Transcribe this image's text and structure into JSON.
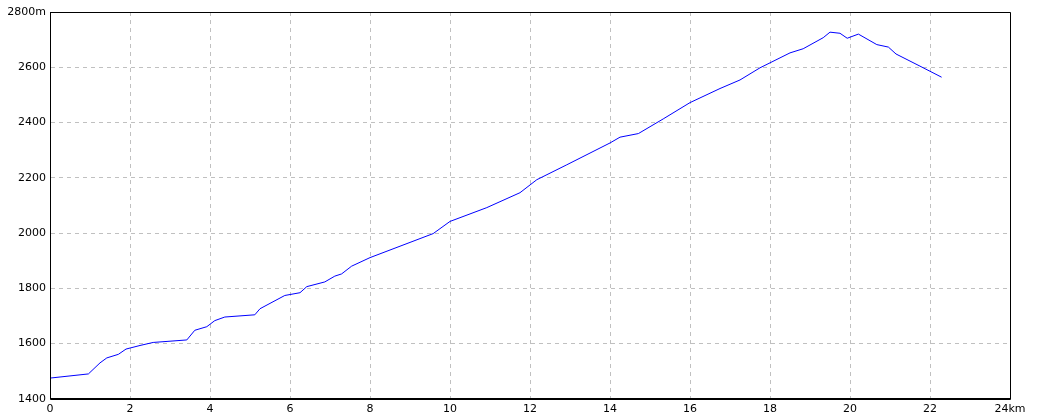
{
  "chart_data": {
    "type": "line",
    "x": [
      0,
      0.96,
      1.25,
      1.42,
      1.71,
      1.9,
      2.25,
      2.58,
      3.42,
      3.62,
      3.92,
      4.12,
      4.37,
      5.12,
      5.25,
      5.87,
      6.25,
      6.42,
      6.87,
      7.12,
      7.29,
      7.54,
      8.0,
      9.58,
      10.0,
      10.92,
      11.75,
      12.17,
      12.92,
      14.0,
      14.25,
      14.71,
      15.33,
      16.0,
      16.75,
      17.25,
      17.75,
      18.5,
      18.83,
      19.33,
      19.5,
      19.75,
      19.93,
      20.21,
      20.67,
      20.96,
      21.15,
      21.75,
      22.29
    ],
    "series": [
      {
        "color": "#0000ff",
        "values": [
          1475,
          1490,
          1530,
          1548,
          1561,
          1580,
          1593,
          1604,
          1613,
          1648,
          1661,
          1683,
          1696,
          1704,
          1726,
          1774,
          1784,
          1806,
          1823,
          1844,
          1852,
          1880,
          1911,
          1998,
          2042,
          2092,
          2146,
          2193,
          2247,
          2326,
          2347,
          2360,
          2413,
          2472,
          2523,
          2554,
          2598,
          2652,
          2667,
          2707,
          2727,
          2723,
          2705,
          2720,
          2682,
          2673,
          2648,
          2604,
          2564
        ]
      }
    ],
    "xlim": [
      0,
      24
    ],
    "xticks": [
      0,
      2,
      4,
      6,
      8,
      10,
      12,
      14,
      16,
      18,
      20,
      22,
      {
        "value": 24,
        "label": "24km"
      }
    ],
    "ylim": [
      1400,
      2800
    ],
    "yticks": [
      1400,
      1600,
      1800,
      2000,
      2200,
      2400,
      2600,
      {
        "value": 2800,
        "label": "2800m"
      }
    ],
    "grid": true,
    "legend": false,
    "marker": "none",
    "line_style": "solid"
  }
}
